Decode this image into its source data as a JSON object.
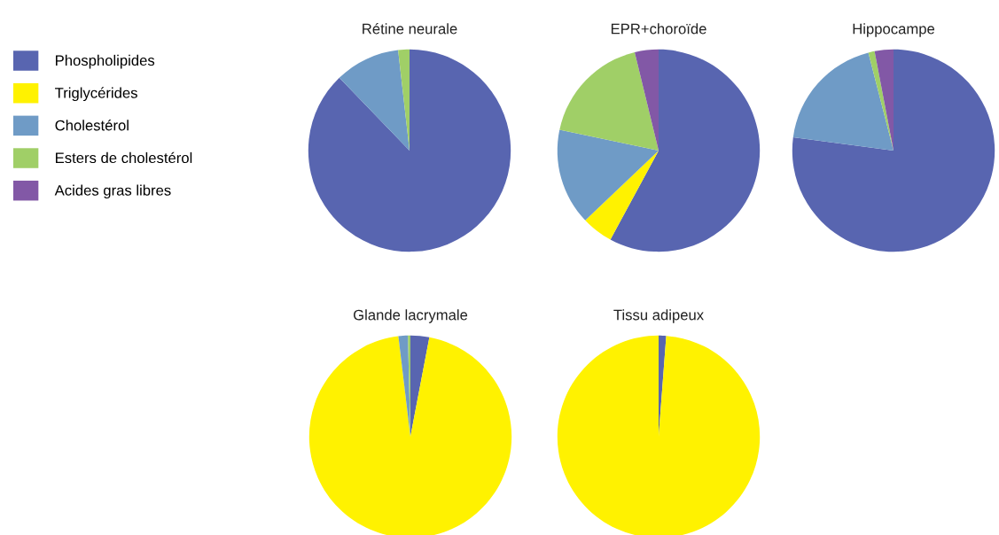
{
  "chart_data": [
    {
      "type": "pie",
      "title": "Rétine neurale",
      "categories": [
        "Phospholipides",
        "Triglycérides",
        "Cholestérol",
        "Esters de cholestérol",
        "Acides gras libres"
      ],
      "values": [
        87.8,
        0,
        10.4,
        1.8,
        0
      ],
      "colors": [
        "#5865b0",
        "#fff200",
        "#6f9bc6",
        "#a0cf67",
        "#8258a6"
      ],
      "legend": "left"
    },
    {
      "type": "pie",
      "title": "EPR+choroïde",
      "values": [
        57.9,
        5.0,
        15.4,
        17.9,
        3.8
      ],
      "colors": [
        "#5865b0",
        "#fff200",
        "#6f9bc6",
        "#a0cf67",
        "#8258a6"
      ]
    },
    {
      "type": "pie",
      "title": "Hippocampe",
      "values": [
        77.1,
        0,
        18.9,
        1.0,
        3.0
      ],
      "colors": [
        "#5865b0",
        "#fff200",
        "#6f9bc6",
        "#a0cf67",
        "#8258a6"
      ]
    },
    {
      "type": "pie",
      "title": "Glande lacrymale",
      "values": [
        3.0,
        95.1,
        1.5,
        0.4,
        0
      ],
      "colors": [
        "#5865b0",
        "#fff200",
        "#6f9bc6",
        "#a0cf67",
        "#8258a6"
      ]
    },
    {
      "type": "pie",
      "title": "Tissu adipeux",
      "values": [
        1.2,
        98.8,
        0,
        0,
        0
      ],
      "colors": [
        "#5865b0",
        "#fff200",
        "#6f9bc6",
        "#a0cf67",
        "#8258a6"
      ]
    }
  ]
}
